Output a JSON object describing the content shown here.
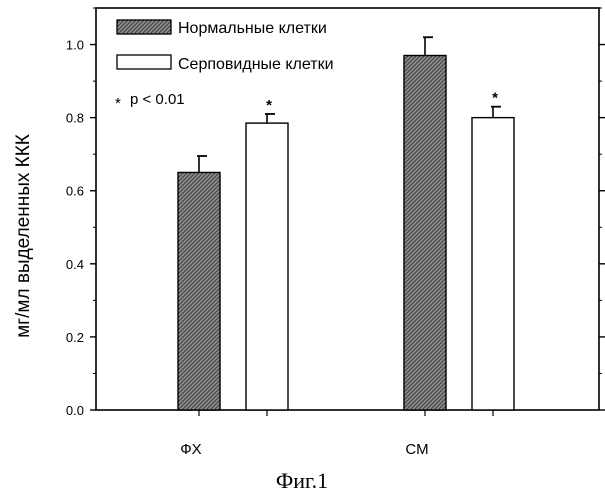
{
  "chart_data": {
    "type": "bar",
    "categories": [
      "ФХ",
      "СМ"
    ],
    "series": [
      {
        "name": "Нормальные клетки",
        "values": [
          0.65,
          0.97
        ],
        "errors": [
          0.045,
          0.05
        ],
        "style": "hatched-gray"
      },
      {
        "name": "Серповидные клетки",
        "values": [
          0.785,
          0.8
        ],
        "errors": [
          0.025,
          0.03
        ],
        "style": "white"
      }
    ],
    "significance_marks": [
      {
        "series": 1,
        "category": 0,
        "label": "*"
      },
      {
        "series": 1,
        "category": 1,
        "label": "*"
      }
    ],
    "significance_note": "p < 0.01",
    "ylabel": "мг/мл выделенных ККК",
    "xlabel": "",
    "ylim": [
      0.0,
      1.1
    ],
    "yticks": [
      "0.0",
      "0.2",
      "0.4",
      "0.6",
      "0.8",
      "1.0"
    ],
    "legend_position": "top-left",
    "caption": "Фиг.1",
    "colors": {
      "bar_fill": "#8a8a8a",
      "bar_hatch": "#4a4a4a",
      "outline": "#000000",
      "white_bar": "#ffffff"
    }
  }
}
